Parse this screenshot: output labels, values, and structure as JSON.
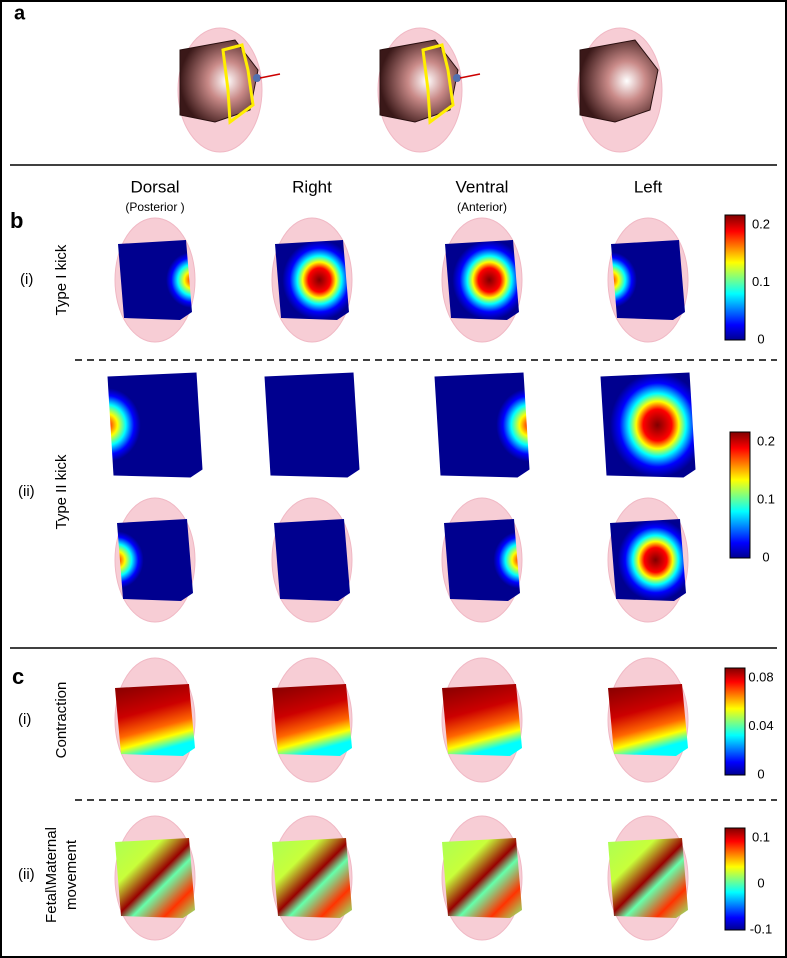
{
  "panel_labels": [
    "a",
    "b",
    "c"
  ],
  "column_headers": [
    {
      "title": "Dorsal",
      "subtitle": "(Posterior )"
    },
    {
      "title": "Right"
    },
    {
      "title": "Ventral",
      "subtitle": "(Anterior)"
    },
    {
      "title": "Left"
    }
  ],
  "rows": [
    {
      "index": "(i)",
      "label": [
        "Type I kick"
      ],
      "colorbar": [
        "0.2",
        "0.1",
        "0"
      ]
    },
    {
      "index": "(ii)",
      "label": [
        "Type II kick"
      ],
      "colorbar": [
        "0.2",
        "0.1",
        "0"
      ]
    },
    {
      "index": "(i)",
      "label": [
        "Contraction"
      ],
      "colorbar": [
        "0.08",
        "0.04",
        "0"
      ]
    },
    {
      "index": "(ii)",
      "label": [
        "Fetal\\Maternal",
        "movement"
      ],
      "colorbar": [
        "0.1",
        "0",
        "-0.1"
      ]
    }
  ]
}
